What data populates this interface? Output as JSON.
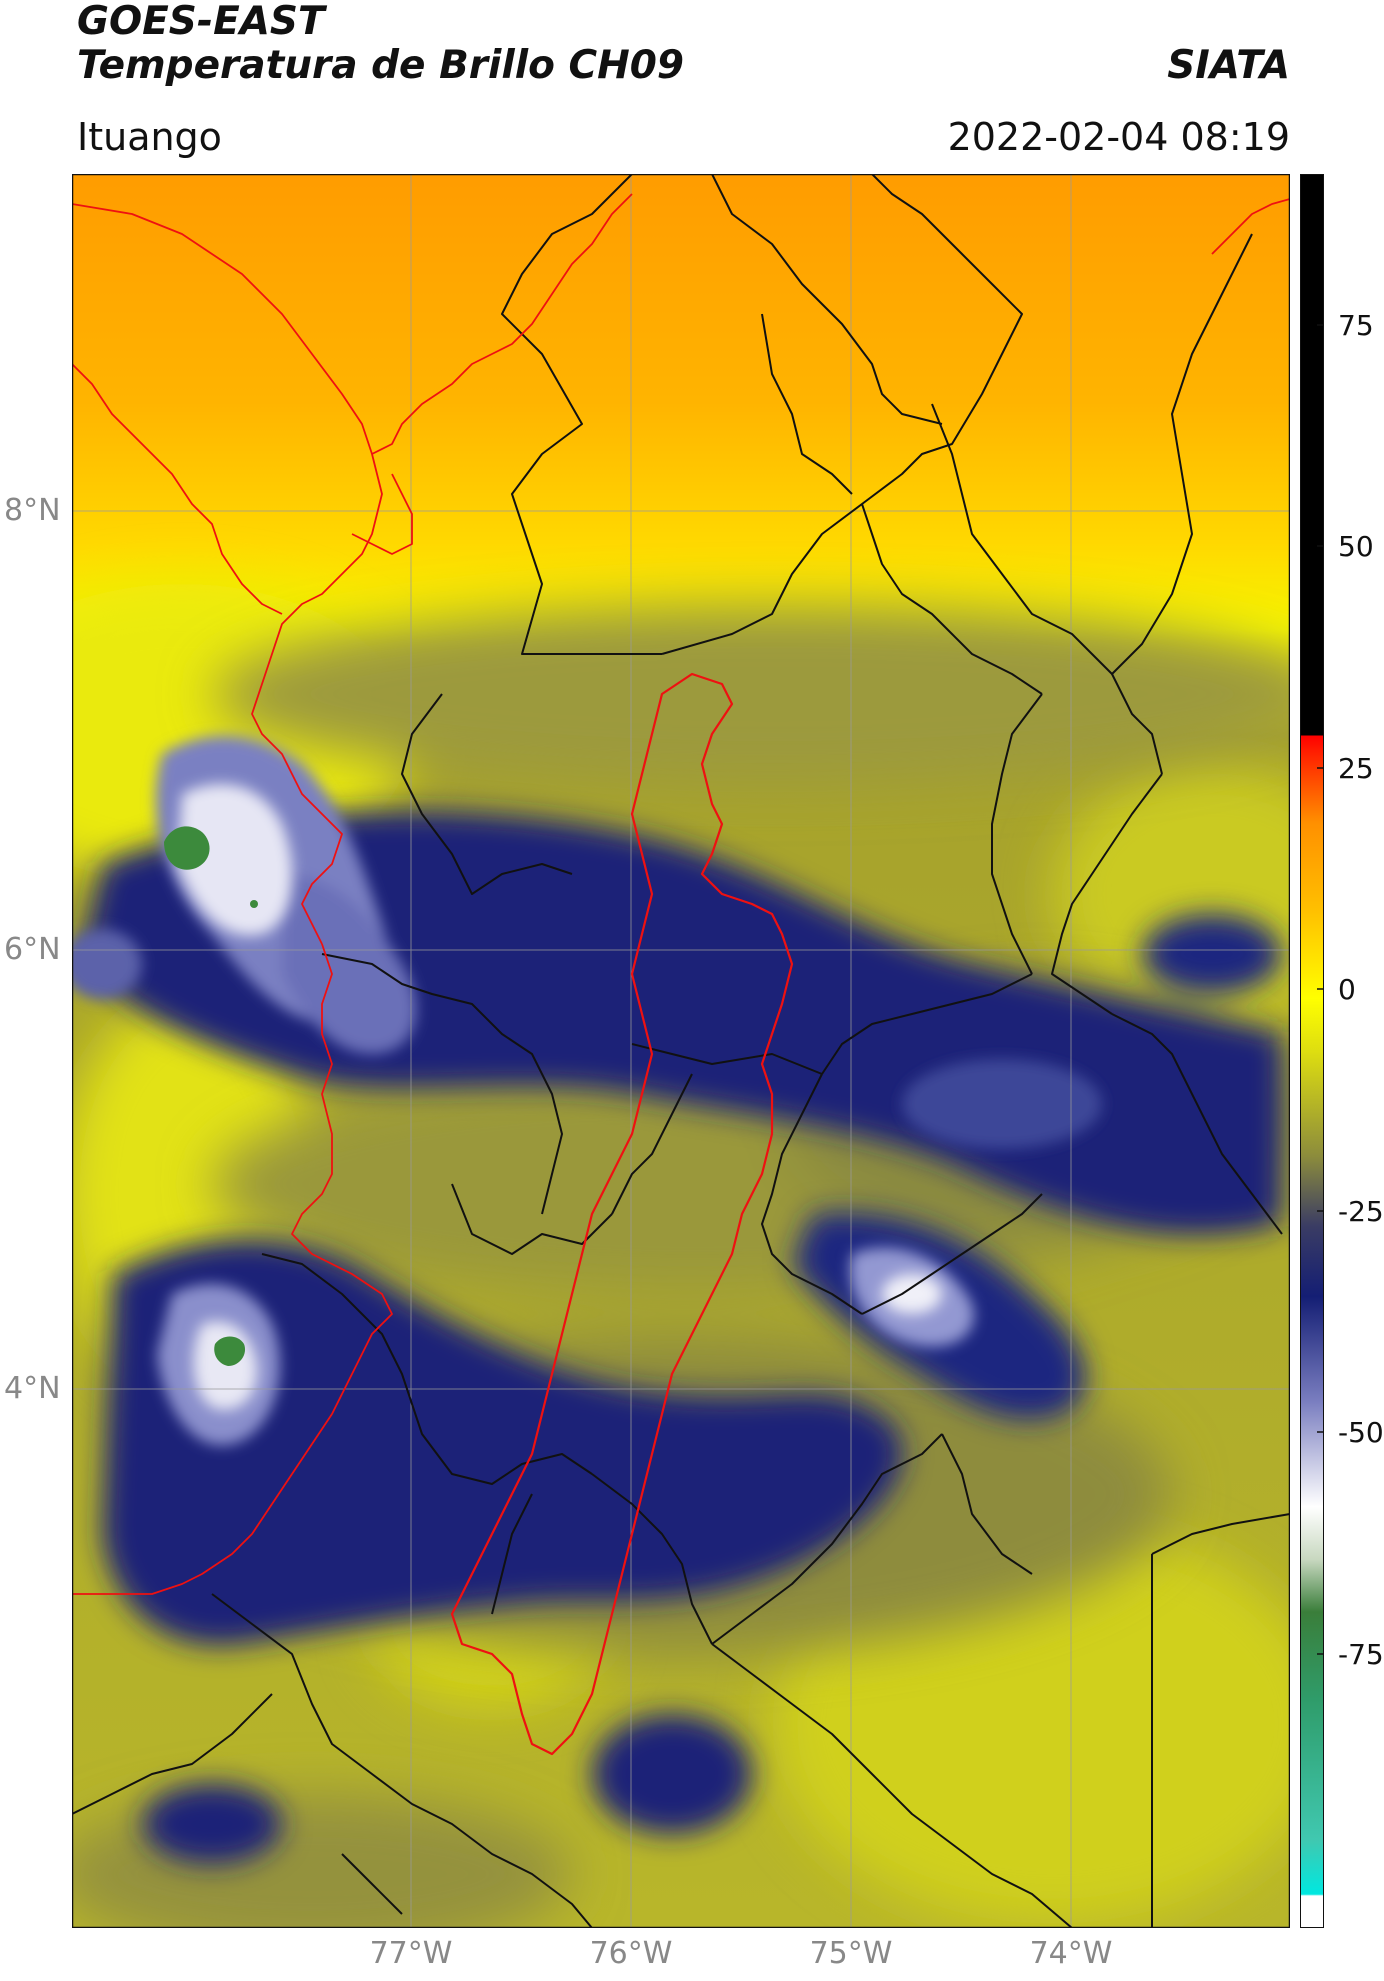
{
  "header": {
    "satellite": "GOES-EAST",
    "product": "Temperatura de Brillo CH09",
    "org": "SIATA",
    "location": "Ituango",
    "datetime": "2022-02-04 08:19"
  },
  "axes": {
    "lat_labels": [
      "8°N",
      "6°N",
      "4°N"
    ],
    "lon_labels": [
      "77°W",
      "76°W",
      "75°W",
      "74°W"
    ]
  },
  "colorbar": {
    "ticks": [
      "75",
      "50",
      "25",
      "0",
      "-25",
      "-50",
      "-75"
    ],
    "colors": {
      "cold_white": "#ffffff",
      "cyan": "#1fdcd2",
      "green": "#2e7d32",
      "navy": "#101c70",
      "olive": "#8c8c3a",
      "yellow": "#ffff00",
      "orange": "#ff9a00",
      "red": "#ff1a00",
      "black": "#000000"
    }
  },
  "map_colors": {
    "border": "#111111",
    "basin": "#ee1111",
    "grid": "#9a9a9a"
  }
}
